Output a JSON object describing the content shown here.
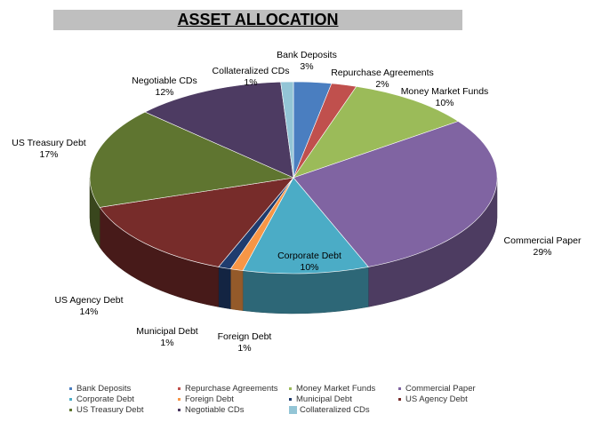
{
  "chart_data": {
    "type": "pie",
    "title": "ASSET ALLOCATION",
    "style": "3d",
    "start": "top, clockwise",
    "slices": [
      {
        "label": "Bank Deposits",
        "value": 3,
        "pct": "3%",
        "color": "#4a7ec0"
      },
      {
        "label": "Repurchase Agreements",
        "value": 2,
        "pct": "2%",
        "color": "#c0504d"
      },
      {
        "label": "Money Market Funds",
        "value": 10,
        "pct": "10%",
        "color": "#9bbb59"
      },
      {
        "label": "Commercial Paper",
        "value": 29,
        "pct": "29%",
        "color": "#8064a2"
      },
      {
        "label": "Corporate  Debt",
        "value": 10,
        "pct": "10%",
        "color": "#4bacc6"
      },
      {
        "label": "Foreign Debt",
        "value": 1,
        "pct": "1%",
        "color": "#f79646"
      },
      {
        "label": "Municipal Debt",
        "value": 1,
        "pct": "1%",
        "color": "#1f3c6e"
      },
      {
        "label": "US Agency Debt",
        "value": 14,
        "pct": "14%",
        "color": "#772c2a"
      },
      {
        "label": "US Treasury Debt",
        "value": 17,
        "pct": "17%",
        "color": "#5f7530"
      },
      {
        "label": "Negotiable CDs",
        "value": 12,
        "pct": "12%",
        "color": "#4d3b62"
      },
      {
        "label": "Collateralized CDs",
        "value": 1,
        "pct": "1%",
        "color": "#93c5d6"
      }
    ],
    "legend": "bottom"
  }
}
